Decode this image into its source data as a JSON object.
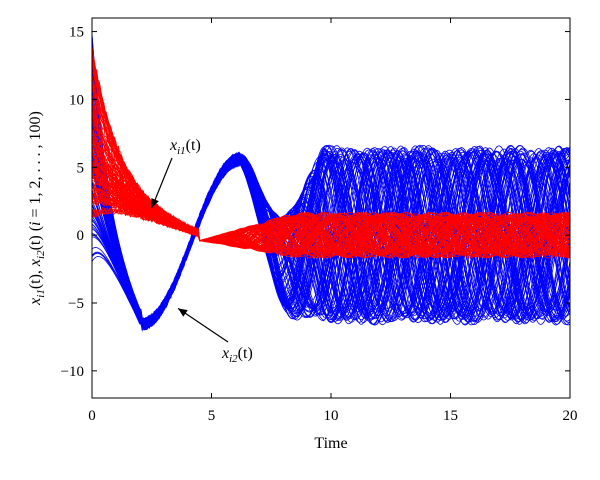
{
  "chart_data": {
    "type": "line",
    "title": "",
    "xlabel": "Time",
    "ylabel": "x_{i1}(t), x_{i2}(t) (i = 1, 2, ..., 100)",
    "ylabel_parts": {
      "x1": "x",
      "sub1": "i1",
      "t1": "(t), ",
      "x2": "x",
      "sub2": "i2",
      "t2": "(t) (",
      "i": "i",
      "eq": " = 1, 2, . . . , 100)"
    },
    "xlim": [
      0,
      20
    ],
    "ylim": [
      -12,
      16
    ],
    "xticks": [
      "0",
      "5",
      "10",
      "15",
      "20"
    ],
    "yticks": [
      "−10",
      "−5",
      "0",
      "5",
      "10",
      "15"
    ],
    "xtick_values": [
      0,
      5,
      10,
      15,
      20
    ],
    "ytick_values": [
      -10,
      -5,
      0,
      5,
      10,
      15
    ],
    "grid": false,
    "series": [
      {
        "name": "x_{i1}(t)",
        "count": 100,
        "color": "#ff0000",
        "representative_x": [
          0,
          0.5,
          1,
          1.5,
          2,
          3,
          4,
          4.5,
          5,
          6,
          8,
          10,
          12,
          14,
          16,
          18,
          20
        ],
        "representative_y": [
          8,
          5,
          3.5,
          2.6,
          2.1,
          1.2,
          0.4,
          0,
          -0.3,
          -0.8,
          -1.0,
          -0.8,
          1.2,
          -1.3,
          0.5,
          1.0,
          -1.2
        ],
        "late_amplitude": 1.6
      },
      {
        "name": "x_{i2}(t)",
        "count": 100,
        "color": "#0000ff",
        "representative_x": [
          0,
          0.5,
          1,
          1.5,
          2,
          2.5,
          3,
          3.5,
          4,
          4.5,
          5,
          5.5,
          6,
          6.5,
          7,
          7.5,
          8,
          9,
          10,
          12,
          14,
          16,
          18,
          20
        ],
        "representative_y": [
          8,
          1,
          -3,
          -5.5,
          -6.5,
          -6,
          -4.5,
          -3,
          -1.5,
          0.5,
          3,
          5,
          5.7,
          4,
          1.5,
          -1.5,
          -3.5,
          4,
          -6,
          5.5,
          -6,
          6,
          -6.5,
          5
        ],
        "late_amplitude": 6.5
      }
    ],
    "annotations": [
      {
        "name": "x1",
        "text_x": "x",
        "text_sub": "i1",
        "text_tail": "(t)",
        "arrow_to": [
          2.5,
          2.0
        ]
      },
      {
        "name": "x2",
        "text_x": "x",
        "text_sub": "i2",
        "text_tail": "(t)",
        "arrow_to": [
          3.6,
          -5.4
        ]
      }
    ]
  }
}
